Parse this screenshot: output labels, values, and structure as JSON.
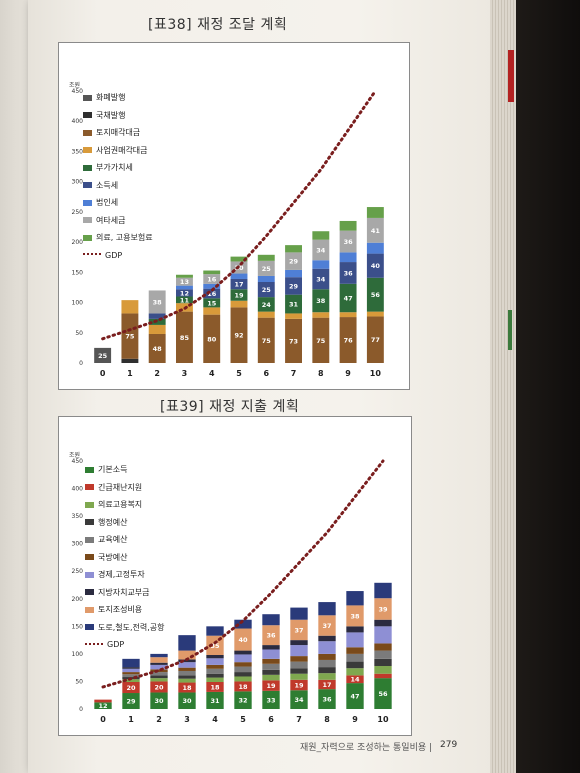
{
  "book": {
    "footer_text": "재원_자력으로 조성하는 통일비용 |",
    "page_number": "279"
  },
  "colors": {
    "issuance": "#555555",
    "bond": "#2f2f2f",
    "land": "#8b5a2b",
    "rights": "#d89a3a",
    "vat": "#2e6b3a",
    "income": "#3b4f8a",
    "corp": "#4f7fd6",
    "other": "#a8a8a8",
    "insurance": "#66a04a",
    "gdp": "#7a1e1e",
    "basic": "#2e7d32",
    "emergency": "#c0392b",
    "welfare": "#7fa84f",
    "admin": "#3a3a3a",
    "edu": "#7b7b7b",
    "defense": "#7a4a1a",
    "econ": "#8e8fd4",
    "local": "#2b2b40",
    "landcreate": "#e09a6a",
    "infra": "#2a3a7a"
  },
  "chart1": {
    "title": "[표38] 재정 조달 계획",
    "y_unit": "조원",
    "chart_data": {
      "type": "bar",
      "categories": [
        "0",
        "1",
        "2",
        "3",
        "4",
        "5",
        "6",
        "7",
        "8",
        "9",
        "10"
      ],
      "ylim": [
        0,
        450
      ],
      "yticks": [
        "0",
        "50",
        "100",
        "150",
        "200",
        "250",
        "300",
        "350",
        "400",
        "450"
      ],
      "legend": [
        "화폐발행",
        "국채발행",
        "토지매각대금",
        "사업권매각대금",
        "부가가치세",
        "소득세",
        "법인세",
        "여타세금",
        "의료,고용보험료",
        "GDP"
      ],
      "series": [
        {
          "name": "화폐발행",
          "values": [
            25,
            0,
            0,
            0,
            0,
            0,
            0,
            0,
            0,
            0,
            0
          ],
          "labels": [
            "25",
            "",
            "",
            "",
            "",
            "",
            "",
            "",
            "",
            "",
            ""
          ]
        },
        {
          "name": "국채발행",
          "values": [
            0,
            7,
            0,
            0,
            0,
            0,
            0,
            0,
            0,
            0,
            0
          ],
          "labels": [
            "",
            "7",
            "",
            "",
            "",
            "",
            "",
            "",
            "",
            "",
            ""
          ]
        },
        {
          "name": "토지매각대금",
          "values": [
            0,
            75,
            48,
            85,
            80,
            92,
            75,
            73,
            75,
            76,
            77
          ],
          "labels": [
            "",
            "75",
            "48",
            "85",
            "80",
            "92",
            "75",
            "73",
            "75",
            "76",
            "77"
          ]
        },
        {
          "name": "사업권매각대금",
          "values": [
            0,
            22,
            15,
            14,
            12,
            11,
            10,
            9,
            9,
            8,
            8
          ],
          "labels": [
            "",
            "",
            "",
            "",
            "",
            "",
            "",
            "",
            "",
            "",
            ""
          ]
        },
        {
          "name": "부가가치세",
          "values": [
            0,
            0,
            10,
            11,
            15,
            19,
            24,
            31,
            38,
            47,
            56
          ],
          "labels": [
            "",
            "",
            "",
            "11",
            "15",
            "19",
            "24",
            "31",
            "38",
            "47",
            "56"
          ]
        },
        {
          "name": "소득세",
          "values": [
            0,
            0,
            9,
            12,
            16,
            17,
            25,
            29,
            34,
            36,
            40
          ],
          "labels": [
            "",
            "",
            "9",
            "12",
            "16",
            "17",
            "25",
            "29",
            "34",
            "36",
            "40"
          ]
        },
        {
          "name": "법인세",
          "values": [
            0,
            0,
            0,
            6,
            8,
            9,
            10,
            12,
            14,
            16,
            18
          ],
          "labels": [
            "",
            "",
            "",
            "",
            "",
            "",
            "",
            "",
            "",
            "",
            ""
          ]
        },
        {
          "name": "여타세금",
          "values": [
            0,
            0,
            38,
            13,
            16,
            20,
            25,
            29,
            34,
            36,
            41
          ],
          "labels": [
            "",
            "",
            "38",
            "13",
            "16",
            "20",
            "25",
            "29",
            "34",
            "36",
            "41"
          ]
        },
        {
          "name": "의료,고용보험료",
          "values": [
            0,
            0,
            0,
            5,
            6,
            8,
            10,
            12,
            14,
            16,
            18
          ],
          "labels": [
            "",
            "",
            "",
            "",
            "",
            "",
            "",
            "",
            "",
            "",
            ""
          ]
        }
      ],
      "gdp": [
        40,
        55,
        70,
        90,
        120,
        160,
        210,
        265,
        320,
        385,
        450
      ]
    },
    "legend_names": {
      "l0": "화폐발행",
      "l1": "국채발행",
      "l2": "토지매각대금",
      "l3": "사업권매각대금",
      "l4": "부가가치세",
      "l5": "소득세",
      "l6": "법인세",
      "l7": "여타세금",
      "l8": "의료, 고용보험료",
      "l9": "GDP"
    }
  },
  "chart2": {
    "title": "[표39] 재정 지출 계획",
    "y_unit": "조원",
    "chart_data": {
      "type": "bar",
      "categories": [
        "0",
        "1",
        "2",
        "3",
        "4",
        "5",
        "6",
        "7",
        "8",
        "9",
        "10"
      ],
      "ylim": [
        0,
        450
      ],
      "yticks": [
        "0",
        "50",
        "100",
        "150",
        "200",
        "250",
        "300",
        "350",
        "400",
        "450"
      ],
      "legend": [
        "기본소득",
        "긴급재난지원",
        "의료고용복지",
        "행정예산",
        "교육예산",
        "국방예산",
        "경제,고정투자",
        "지방자치교부금",
        "토지조성비용",
        "도로,철도,전력,공항",
        "GDP"
      ],
      "series": [
        {
          "name": "기본소득",
          "values": [
            12,
            29,
            30,
            30,
            31,
            32,
            33,
            34,
            36,
            47,
            56
          ],
          "labels": [
            "12",
            "29",
            "30",
            "30",
            "31",
            "32",
            "33",
            "34",
            "36",
            "47",
            "56"
          ]
        },
        {
          "name": "긴급재난지원",
          "values": [
            5,
            20,
            20,
            18,
            18,
            18,
            19,
            19,
            17,
            14,
            8
          ],
          "labels": [
            "",
            "20",
            "20",
            "18",
            "18",
            "18",
            "19",
            "19",
            "17",
            "14",
            ""
          ]
        },
        {
          "name": "의료고용복지",
          "values": [
            0,
            5,
            6,
            7,
            8,
            9,
            10,
            11,
            12,
            13,
            14
          ],
          "labels": [
            "",
            "",
            "",
            "",
            "",
            "",
            "",
            "",
            "",
            "",
            ""
          ]
        },
        {
          "name": "행정예산",
          "values": [
            0,
            4,
            5,
            6,
            7,
            8,
            9,
            10,
            11,
            12,
            13
          ],
          "labels": [
            "",
            "",
            "",
            "",
            "",
            "",
            "",
            "",
            "",
            "",
            ""
          ]
        },
        {
          "name": "교육예산",
          "values": [
            0,
            5,
            6,
            8,
            9,
            10,
            11,
            12,
            13,
            14,
            15
          ],
          "labels": [
            "",
            "",
            "",
            "",
            "",
            "",
            "",
            "",
            "",
            "",
            ""
          ]
        },
        {
          "name": "국방예산",
          "values": [
            0,
            4,
            5,
            6,
            7,
            8,
            9,
            10,
            11,
            12,
            13
          ],
          "labels": [
            "",
            "",
            "",
            "",
            "",
            "",
            "",
            "",
            "",
            "",
            ""
          ]
        },
        {
          "name": "경제,고정투자",
          "values": [
            0,
            6,
            8,
            10,
            12,
            14,
            17,
            20,
            23,
            27,
            31
          ],
          "labels": [
            "",
            "",
            "",
            "",
            "",
            "",
            "",
            "",
            "",
            "",
            ""
          ]
        },
        {
          "name": "지방자치교부금",
          "values": [
            0,
            3,
            4,
            5,
            6,
            7,
            8,
            9,
            10,
            11,
            12
          ],
          "labels": [
            "",
            "",
            "",
            "",
            "",
            "",
            "",
            "",
            "",
            "",
            ""
          ]
        },
        {
          "name": "토지조성비용",
          "values": [
            0,
            0,
            10,
            16,
            35,
            40,
            36,
            37,
            37,
            38,
            39
          ],
          "labels": [
            "",
            "",
            "",
            "",
            "35",
            "40",
            "36",
            "37",
            "37",
            "38",
            "39"
          ]
        },
        {
          "name": "도로,철도,전력,공항",
          "values": [
            0,
            15,
            6,
            28,
            17,
            16,
            20,
            22,
            24,
            26,
            28
          ],
          "labels": [
            "",
            "",
            "",
            "",
            "",
            "",
            "",
            "",
            "",
            "",
            ""
          ]
        }
      ],
      "gdp": [
        40,
        55,
        70,
        90,
        120,
        160,
        210,
        265,
        320,
        385,
        450
      ]
    },
    "legend_names": {
      "l0": "기본소득",
      "l1": "긴급재난지원",
      "l2": "의료고용복지",
      "l3": "행정예산",
      "l4": "교육예산",
      "l5": "국방예산",
      "l6": "경제,고정투자",
      "l7": "지방자치교부금",
      "l8": "토지조성비용",
      "l9": "도로,철도,전력,공항",
      "l10": "GDP"
    }
  }
}
